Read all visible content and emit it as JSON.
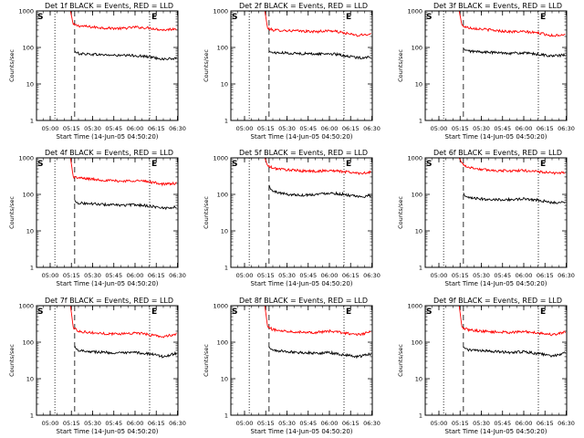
{
  "figure": {
    "detectors": [
      "1f",
      "2f",
      "3f",
      "4f",
      "5f",
      "6f",
      "7f",
      "8f",
      "9f"
    ]
  },
  "chart_data": [
    {
      "type": "line",
      "title": "Det 1f BLACK = Events, RED = LLD",
      "xlabel": "Start Time (14-Jun-05 04:50:20)",
      "ylabel": "Counts/sec",
      "xscale": "time (minutes after 04:50:20)",
      "yscale": "log",
      "xlim": [
        0,
        100
      ],
      "ylim": [
        1,
        1000
      ],
      "xtick_labels": [
        "05:00",
        "05:15",
        "05:30",
        "05:45",
        "06:00",
        "06:15",
        "06:30"
      ],
      "xtick_values": [
        9.67,
        24.67,
        39.67,
        54.67,
        69.67,
        84.67,
        99.67
      ],
      "ytick_labels": [
        "1",
        "10",
        "100",
        "1000"
      ],
      "ytick_values": [
        1,
        10,
        100,
        1000
      ],
      "markers": [
        {
          "label": "S",
          "x": 0,
          "line_style": "dotted"
        },
        {
          "label": "E",
          "x": 80,
          "line_style": "dotted"
        }
      ],
      "vlines": [
        {
          "x": 13,
          "style": "dotted"
        },
        {
          "x": 27,
          "style": "dashed"
        },
        {
          "x": 80,
          "style": "dotted"
        }
      ],
      "series": [
        {
          "name": "LLD",
          "color": "#ff0000",
          "x": [
            24,
            26,
            30,
            40,
            50,
            60,
            70,
            80,
            90,
            99
          ],
          "values": [
            1000,
            420,
            390,
            360,
            340,
            330,
            360,
            340,
            300,
            330
          ]
        },
        {
          "name": "Events",
          "color": "#000000",
          "x": [
            27,
            28,
            30,
            40,
            50,
            60,
            70,
            80,
            90,
            99
          ],
          "values": [
            80,
            72,
            68,
            65,
            62,
            60,
            60,
            55,
            48,
            50
          ]
        }
      ]
    },
    {
      "type": "line",
      "title": "Det 2f BLACK = Events, RED = LLD",
      "xlabel": "Start Time (14-Jun-05 04:50:20)",
      "ylabel": "Counts/sec",
      "xscale": "time (minutes after 04:50:20)",
      "yscale": "log",
      "xlim": [
        0,
        100
      ],
      "ylim": [
        1,
        1000
      ],
      "xtick_labels": [
        "05:00",
        "05:15",
        "05:30",
        "05:45",
        "06:00",
        "06:15",
        "06:30"
      ],
      "xtick_values": [
        9.67,
        24.67,
        39.67,
        54.67,
        69.67,
        84.67,
        99.67
      ],
      "ytick_labels": [
        "1",
        "10",
        "100",
        "1000"
      ],
      "ytick_values": [
        1,
        10,
        100,
        1000
      ],
      "markers": [
        {
          "label": "S",
          "x": 0,
          "line_style": "dotted"
        },
        {
          "label": "E",
          "x": 80,
          "line_style": "dotted"
        }
      ],
      "vlines": [
        {
          "x": 13,
          "style": "dotted"
        },
        {
          "x": 27,
          "style": "dashed"
        },
        {
          "x": 80,
          "style": "dotted"
        }
      ],
      "series": [
        {
          "name": "LLD",
          "color": "#ff0000",
          "x": [
            24,
            26,
            30,
            40,
            50,
            60,
            70,
            80,
            90,
            99
          ],
          "values": [
            1000,
            330,
            300,
            290,
            280,
            270,
            290,
            250,
            210,
            240
          ]
        },
        {
          "name": "Events",
          "color": "#000000",
          "x": [
            27,
            28,
            30,
            40,
            50,
            60,
            70,
            80,
            90,
            99
          ],
          "values": [
            80,
            75,
            72,
            70,
            68,
            66,
            68,
            60,
            52,
            55
          ]
        }
      ]
    },
    {
      "type": "line",
      "title": "Det 3f BLACK = Events, RED = LLD",
      "xlabel": "Start Time (14-Jun-05 04:50:20)",
      "ylabel": "Counts/sec",
      "xscale": "time (minutes after 04:50:20)",
      "yscale": "log",
      "xlim": [
        0,
        100
      ],
      "ylim": [
        1,
        1000
      ],
      "xtick_labels": [
        "05:00",
        "05:15",
        "05:30",
        "05:45",
        "06:00",
        "06:15",
        "06:30"
      ],
      "xtick_values": [
        9.67,
        24.67,
        39.67,
        54.67,
        69.67,
        84.67,
        99.67
      ],
      "ytick_labels": [
        "1",
        "10",
        "100",
        "1000"
      ],
      "ytick_values": [
        1,
        10,
        100,
        1000
      ],
      "markers": [
        {
          "label": "S",
          "x": 0,
          "line_style": "dotted"
        },
        {
          "label": "E",
          "x": 80,
          "line_style": "dotted"
        }
      ],
      "vlines": [
        {
          "x": 13,
          "style": "dotted"
        },
        {
          "x": 27,
          "style": "dashed"
        },
        {
          "x": 80,
          "style": "dotted"
        }
      ],
      "series": [
        {
          "name": "LLD",
          "color": "#ff0000",
          "x": [
            24,
            26,
            30,
            40,
            50,
            60,
            70,
            80,
            90,
            99
          ],
          "values": [
            1000,
            400,
            350,
            320,
            290,
            270,
            270,
            250,
            210,
            230
          ]
        },
        {
          "name": "Events",
          "color": "#000000",
          "x": [
            27,
            28,
            30,
            40,
            50,
            60,
            70,
            80,
            90,
            99
          ],
          "values": [
            95,
            85,
            80,
            75,
            72,
            70,
            70,
            65,
            58,
            62
          ]
        }
      ]
    },
    {
      "type": "line",
      "title": "Det 4f BLACK = Events, RED = LLD",
      "xlabel": "Start Time (14-Jun-05 04:50:20)",
      "ylabel": "Counts/sec",
      "xscale": "time (minutes after 04:50:20)",
      "yscale": "log",
      "xlim": [
        0,
        100
      ],
      "ylim": [
        1,
        1000
      ],
      "xtick_labels": [
        "05:00",
        "05:15",
        "05:30",
        "05:45",
        "06:00",
        "06:15",
        "06:30"
      ],
      "xtick_values": [
        9.67,
        24.67,
        39.67,
        54.67,
        69.67,
        84.67,
        99.67
      ],
      "ytick_labels": [
        "1",
        "10",
        "100",
        "1000"
      ],
      "ytick_values": [
        1,
        10,
        100,
        1000
      ],
      "markers": [
        {
          "label": "S",
          "x": 0,
          "line_style": "dotted"
        },
        {
          "label": "E",
          "x": 80,
          "line_style": "dotted"
        }
      ],
      "vlines": [
        {
          "x": 13,
          "style": "dotted"
        },
        {
          "x": 27,
          "style": "dashed"
        },
        {
          "x": 80,
          "style": "dotted"
        }
      ],
      "series": [
        {
          "name": "LLD",
          "color": "#ff0000",
          "x": [
            24,
            26,
            30,
            40,
            50,
            60,
            70,
            80,
            90,
            99
          ],
          "values": [
            1000,
            300,
            280,
            260,
            240,
            230,
            240,
            220,
            190,
            200
          ]
        },
        {
          "name": "Events",
          "color": "#000000",
          "x": [
            27,
            28,
            30,
            40,
            50,
            60,
            70,
            80,
            90,
            99
          ],
          "values": [
            70,
            60,
            58,
            55,
            52,
            50,
            52,
            48,
            42,
            45
          ]
        }
      ]
    },
    {
      "type": "line",
      "title": "Det 5f BLACK = Events, RED = LLD",
      "xlabel": "Start Time (14-Jun-05 04:50:20)",
      "ylabel": "Counts/sec",
      "xscale": "time (minutes after 04:50:20)",
      "yscale": "log",
      "xlim": [
        0,
        100
      ],
      "ylim": [
        1,
        1000
      ],
      "xtick_labels": [
        "05:00",
        "05:15",
        "05:30",
        "05:45",
        "06:00",
        "06:15",
        "06:30"
      ],
      "xtick_values": [
        9.67,
        24.67,
        39.67,
        54.67,
        69.67,
        84.67,
        99.67
      ],
      "ytick_labels": [
        "1",
        "10",
        "100",
        "1000"
      ],
      "ytick_values": [
        1,
        10,
        100,
        1000
      ],
      "markers": [
        {
          "label": "S",
          "x": 0,
          "line_style": "dotted"
        },
        {
          "label": "E",
          "x": 80,
          "line_style": "dotted"
        }
      ],
      "vlines": [
        {
          "x": 13,
          "style": "dotted"
        },
        {
          "x": 27,
          "style": "dashed"
        },
        {
          "x": 80,
          "style": "dotted"
        }
      ],
      "series": [
        {
          "name": "LLD",
          "color": "#ff0000",
          "x": [
            24,
            26,
            30,
            40,
            50,
            60,
            70,
            80,
            90,
            99
          ],
          "values": [
            1000,
            600,
            520,
            470,
            440,
            430,
            450,
            420,
            380,
            400
          ]
        },
        {
          "name": "Events",
          "color": "#000000",
          "x": [
            27,
            28,
            30,
            40,
            50,
            60,
            70,
            80,
            90,
            99
          ],
          "values": [
            180,
            140,
            120,
            100,
            95,
            100,
            110,
            100,
            85,
            90
          ]
        }
      ]
    },
    {
      "type": "line",
      "title": "Det 6f BLACK = Events, RED = LLD",
      "xlabel": "Start Time (14-Jun-05 04:50:20)",
      "ylabel": "Counts/sec",
      "xscale": "time (minutes after 04:50:20)",
      "yscale": "log",
      "xlim": [
        0,
        100
      ],
      "ylim": [
        1,
        1000
      ],
      "xtick_labels": [
        "05:00",
        "05:15",
        "05:30",
        "05:45",
        "06:00",
        "06:15",
        "06:30"
      ],
      "xtick_values": [
        9.67,
        24.67,
        39.67,
        54.67,
        69.67,
        84.67,
        99.67
      ],
      "ytick_labels": [
        "1",
        "10",
        "100",
        "1000"
      ],
      "ytick_values": [
        1,
        10,
        100,
        1000
      ],
      "markers": [
        {
          "label": "S",
          "x": 0,
          "line_style": "dotted"
        },
        {
          "label": "E",
          "x": 80,
          "line_style": "dotted"
        }
      ],
      "vlines": [
        {
          "x": 13,
          "style": "dotted"
        },
        {
          "x": 27,
          "style": "dashed"
        },
        {
          "x": 80,
          "style": "dotted"
        }
      ],
      "series": [
        {
          "name": "LLD",
          "color": "#ff0000",
          "x": [
            24,
            26,
            30,
            40,
            50,
            60,
            70,
            80,
            90,
            99
          ],
          "values": [
            1000,
            700,
            560,
            480,
            450,
            440,
            450,
            420,
            380,
            400
          ]
        },
        {
          "name": "Events",
          "color": "#000000",
          "x": [
            27,
            28,
            30,
            40,
            50,
            60,
            70,
            80,
            90,
            99
          ],
          "values": [
            110,
            90,
            80,
            75,
            72,
            72,
            75,
            70,
            58,
            62
          ]
        }
      ]
    },
    {
      "type": "line",
      "title": "Det 7f BLACK = Events, RED = LLD",
      "xlabel": "Start Time (14-Jun-05 04:50:20)",
      "ylabel": "Counts/sec",
      "xscale": "time (minutes after 04:50:20)",
      "yscale": "log",
      "xlim": [
        0,
        100
      ],
      "ylim": [
        1,
        1000
      ],
      "xtick_labels": [
        "05:00",
        "05:15",
        "05:30",
        "05:45",
        "06:00",
        "06:15",
        "06:30"
      ],
      "xtick_values": [
        9.67,
        24.67,
        39.67,
        54.67,
        69.67,
        84.67,
        99.67
      ],
      "ytick_labels": [
        "1",
        "10",
        "100",
        "1000"
      ],
      "ytick_values": [
        1,
        10,
        100,
        1000
      ],
      "markers": [
        {
          "label": "S",
          "x": 0,
          "line_style": "dotted"
        },
        {
          "label": "E",
          "x": 80,
          "line_style": "dotted"
        }
      ],
      "vlines": [
        {
          "x": 13,
          "style": "dotted"
        },
        {
          "x": 27,
          "style": "dashed"
        },
        {
          "x": 80,
          "style": "dotted"
        }
      ],
      "series": [
        {
          "name": "LLD",
          "color": "#ff0000",
          "x": [
            24,
            26,
            30,
            40,
            50,
            60,
            70,
            80,
            90,
            99
          ],
          "values": [
            1000,
            250,
            200,
            180,
            170,
            170,
            180,
            160,
            140,
            170
          ]
        },
        {
          "name": "Events",
          "color": "#000000",
          "x": [
            27,
            28,
            30,
            40,
            50,
            60,
            70,
            80,
            90,
            99
          ],
          "values": [
            80,
            65,
            60,
            55,
            52,
            50,
            52,
            48,
            40,
            50
          ]
        }
      ]
    },
    {
      "type": "line",
      "title": "Det 8f BLACK = Events, RED = LLD",
      "xlabel": "Start Time (14-Jun-05 04:50:20)",
      "ylabel": "Counts/sec",
      "xscale": "time (minutes after 04:50:20)",
      "yscale": "log",
      "xlim": [
        0,
        100
      ],
      "ylim": [
        1,
        1000
      ],
      "xtick_labels": [
        "05:00",
        "05:15",
        "05:30",
        "05:45",
        "06:00",
        "06:15",
        "06:30"
      ],
      "xtick_values": [
        9.67,
        24.67,
        39.67,
        54.67,
        69.67,
        84.67,
        99.67
      ],
      "ytick_labels": [
        "1",
        "10",
        "100",
        "1000"
      ],
      "ytick_values": [
        1,
        10,
        100,
        1000
      ],
      "markers": [
        {
          "label": "S",
          "x": 0,
          "line_style": "dotted"
        },
        {
          "label": "E",
          "x": 80,
          "line_style": "dotted"
        }
      ],
      "vlines": [
        {
          "x": 13,
          "style": "dotted"
        },
        {
          "x": 27,
          "style": "dashed"
        },
        {
          "x": 80,
          "style": "dotted"
        }
      ],
      "series": [
        {
          "name": "LLD",
          "color": "#ff0000",
          "x": [
            24,
            26,
            30,
            40,
            50,
            60,
            70,
            80,
            90,
            99
          ],
          "values": [
            1000,
            260,
            220,
            200,
            190,
            185,
            200,
            180,
            160,
            190
          ]
        },
        {
          "name": "Events",
          "color": "#000000",
          "x": [
            27,
            28,
            30,
            40,
            50,
            60,
            70,
            80,
            90,
            99
          ],
          "values": [
            75,
            65,
            60,
            55,
            52,
            50,
            52,
            45,
            40,
            48
          ]
        }
      ]
    },
    {
      "type": "line",
      "title": "Det 9f BLACK = Events, RED = LLD",
      "xlabel": "Start Time (14-Jun-05 04:50:20)",
      "ylabel": "Counts/sec",
      "xscale": "time (minutes after 04:50:20)",
      "yscale": "log",
      "xlim": [
        0,
        100
      ],
      "ylim": [
        1,
        1000
      ],
      "xtick_labels": [
        "05:00",
        "05:15",
        "05:30",
        "05:45",
        "06:00",
        "06:15",
        "06:30"
      ],
      "xtick_values": [
        9.67,
        24.67,
        39.67,
        54.67,
        69.67,
        84.67,
        99.67
      ],
      "ytick_labels": [
        "1",
        "10",
        "100",
        "1000"
      ],
      "ytick_values": [
        1,
        10,
        100,
        1000
      ],
      "markers": [
        {
          "label": "S",
          "x": 0,
          "line_style": "dotted"
        },
        {
          "label": "E",
          "x": 80,
          "line_style": "dotted"
        }
      ],
      "vlines": [
        {
          "x": 13,
          "style": "dotted"
        },
        {
          "x": 27,
          "style": "dashed"
        },
        {
          "x": 80,
          "style": "dotted"
        }
      ],
      "series": [
        {
          "name": "LLD",
          "color": "#ff0000",
          "x": [
            24,
            26,
            30,
            40,
            50,
            60,
            70,
            80,
            90,
            99
          ],
          "values": [
            1000,
            250,
            220,
            200,
            190,
            185,
            195,
            180,
            160,
            190
          ]
        },
        {
          "name": "Events",
          "color": "#000000",
          "x": [
            27,
            28,
            30,
            40,
            50,
            60,
            70,
            80,
            90,
            99
          ],
          "values": [
            75,
            68,
            62,
            58,
            55,
            52,
            55,
            48,
            42,
            50
          ]
        }
      ]
    }
  ]
}
